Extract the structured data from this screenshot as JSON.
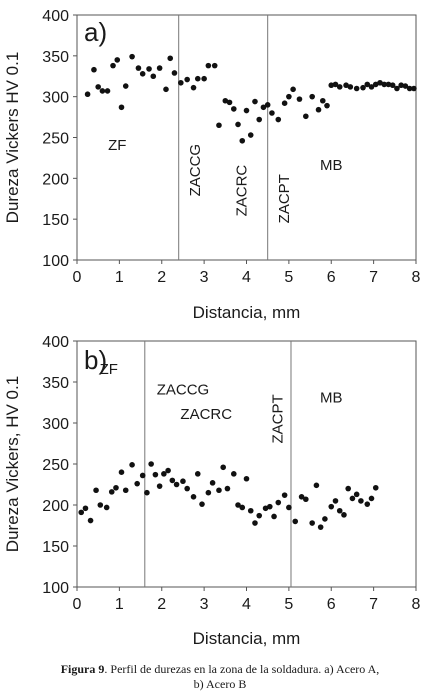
{
  "chart_data": [
    {
      "type": "scatter",
      "panel_label": "a)",
      "xlabel": "Distancia, mm",
      "ylabel": "Dureza Vickers HV 0.1",
      "xlim": [
        0,
        8
      ],
      "ylim": [
        100,
        400
      ],
      "xticks": [
        "0",
        "1",
        "2",
        "3",
        "4",
        "5",
        "6",
        "7",
        "8"
      ],
      "yticks": [
        "100",
        "150",
        "200",
        "250",
        "300",
        "350",
        "400"
      ],
      "grid": false,
      "boundaries": [
        2.4,
        4.5
      ],
      "zone_labels": [
        {
          "text": "ZF",
          "x": 0.95,
          "y": 235,
          "rotate": false
        },
        {
          "text": "ZACCG",
          "x": 2.9,
          "y": 210,
          "rotate": true
        },
        {
          "text": "ZACRC",
          "x": 4.0,
          "y": 185,
          "rotate": true
        },
        {
          "text": "ZACPT",
          "x": 5.0,
          "y": 175,
          "rotate": true
        },
        {
          "text": "MB",
          "x": 6.0,
          "y": 210,
          "rotate": false
        }
      ],
      "series": [
        {
          "x": [
            0.25,
            0.4,
            0.5,
            0.6,
            0.72,
            0.85,
            0.95,
            1.05,
            1.15,
            1.3,
            1.45,
            1.55,
            1.7,
            1.8,
            1.95,
            2.1,
            2.2,
            2.3,
            2.45,
            2.6,
            2.75,
            2.85,
            3.0,
            3.1,
            3.25,
            3.35,
            3.5,
            3.6,
            3.7,
            3.8,
            3.9,
            4.0,
            4.1,
            4.2,
            4.3,
            4.4,
            4.5,
            4.6,
            4.75,
            4.9,
            5.0,
            5.1,
            5.25,
            5.4,
            5.55,
            5.7,
            5.8,
            5.9,
            6.0,
            6.1,
            6.2,
            6.35,
            6.45,
            6.6,
            6.75,
            6.85,
            6.95,
            7.05,
            7.15,
            7.25,
            7.35,
            7.45,
            7.55,
            7.65,
            7.75,
            7.85,
            7.95
          ],
          "y": [
            303,
            333,
            312,
            307,
            307,
            338,
            345,
            287,
            313,
            349,
            335,
            328,
            334,
            325,
            335,
            309,
            347,
            329,
            317,
            321,
            311,
            322,
            322,
            338,
            338,
            265,
            295,
            293,
            285,
            266,
            246,
            283,
            253,
            294,
            272,
            287,
            290,
            280,
            272,
            292,
            300,
            309,
            297,
            276,
            300,
            284,
            295,
            289,
            314,
            315,
            312,
            314,
            312,
            310,
            311,
            315,
            312,
            315,
            317,
            315,
            315,
            314,
            310,
            314,
            313,
            310,
            310
          ]
        }
      ]
    },
    {
      "type": "scatter",
      "panel_label": "b)",
      "xlabel": "Distancia, mm",
      "ylabel": "Dureza Vickers, HV 0.1",
      "xlim": [
        0,
        8
      ],
      "ylim": [
        100,
        400
      ],
      "xticks": [
        "0",
        "1",
        "2",
        "3",
        "4",
        "5",
        "6",
        "7",
        "8"
      ],
      "yticks": [
        "100",
        "150",
        "200",
        "250",
        "300",
        "350",
        "400"
      ],
      "grid": false,
      "boundaries": [
        1.6,
        5.05
      ],
      "zone_labels": [
        {
          "text": "ZF",
          "x": 0.75,
          "y": 360,
          "rotate": false
        },
        {
          "text": "ZACCG",
          "x": 2.5,
          "y": 335,
          "rotate": false
        },
        {
          "text": "ZACRC",
          "x": 3.05,
          "y": 305,
          "rotate": false
        },
        {
          "text": "ZACPT",
          "x": 4.85,
          "y": 305,
          "rotate": true
        },
        {
          "text": "MB",
          "x": 6.0,
          "y": 325,
          "rotate": false
        }
      ],
      "series": [
        {
          "x": [
            0.1,
            0.2,
            0.32,
            0.45,
            0.55,
            0.7,
            0.82,
            0.92,
            1.05,
            1.15,
            1.3,
            1.42,
            1.55,
            1.65,
            1.75,
            1.85,
            1.95,
            2.05,
            2.15,
            2.25,
            2.35,
            2.5,
            2.6,
            2.75,
            2.85,
            2.95,
            3.1,
            3.2,
            3.35,
            3.45,
            3.55,
            3.7,
            3.8,
            3.9,
            4.0,
            4.1,
            4.2,
            4.3,
            4.45,
            4.55,
            4.65,
            4.75,
            4.9,
            5.0,
            5.15,
            5.3,
            5.4,
            5.55,
            5.65,
            5.75,
            5.85,
            6.0,
            6.1,
            6.2,
            6.3,
            6.4,
            6.5,
            6.6,
            6.7,
            6.85,
            6.95,
            7.05
          ],
          "y": [
            191,
            196,
            181,
            218,
            200,
            197,
            216,
            221,
            240,
            218,
            249,
            226,
            236,
            215,
            250,
            237,
            223,
            238,
            242,
            230,
            225,
            229,
            220,
            210,
            238,
            201,
            215,
            227,
            218,
            246,
            220,
            238,
            200,
            197,
            232,
            193,
            178,
            187,
            196,
            198,
            186,
            203,
            212,
            197,
            180,
            210,
            207,
            178,
            224,
            173,
            183,
            198,
            205,
            193,
            188,
            220,
            208,
            213,
            205,
            201,
            208,
            221
          ]
        }
      ]
    }
  ],
  "caption": {
    "figure_label": "Figura 9",
    "line1": ". Perfil de durezas en la zona de la soldadura. a) Acero A,",
    "line2": "b) Acero B"
  }
}
